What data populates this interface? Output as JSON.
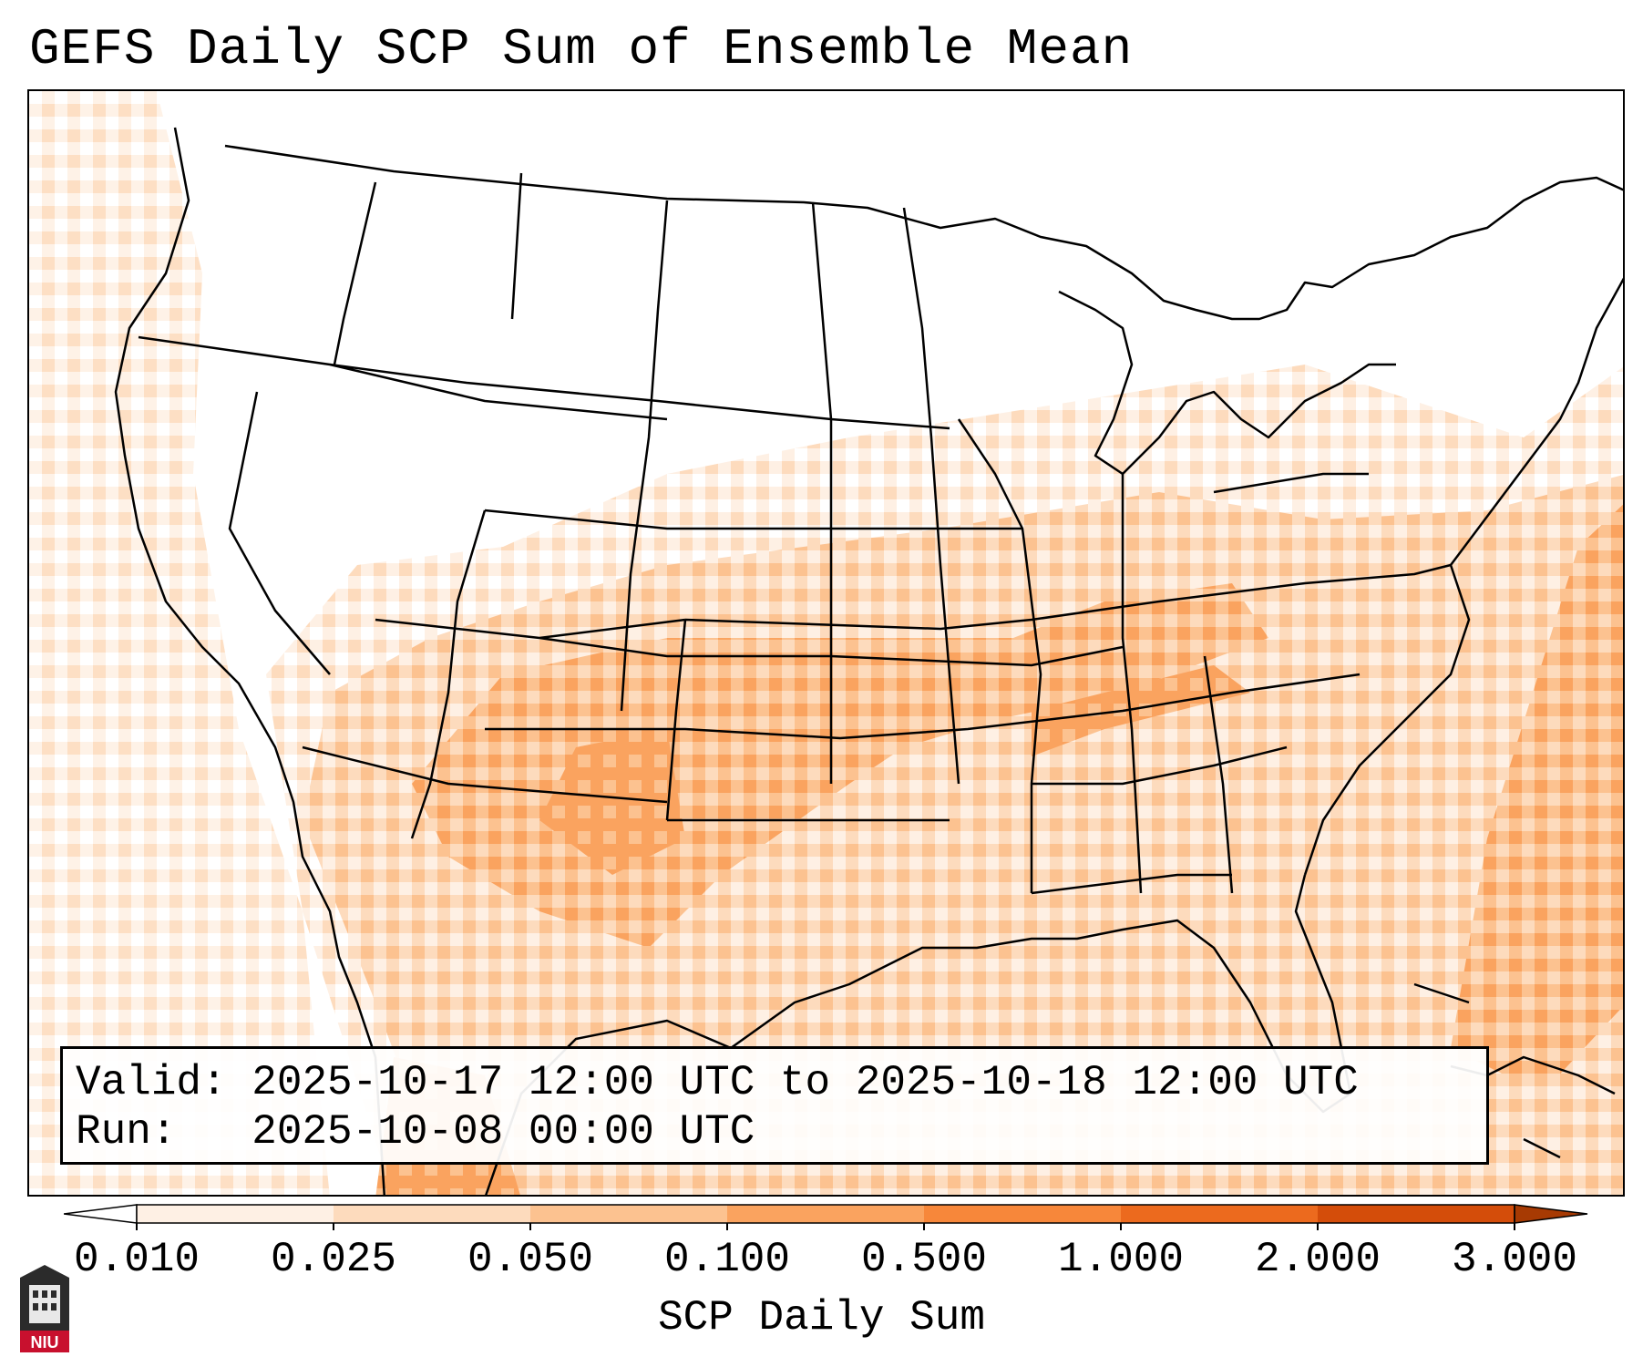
{
  "header": {
    "title": "GEFS Daily SCP Sum of Ensemble Mean"
  },
  "info": {
    "valid_line": "Valid: 2025-10-17 12:00 UTC to 2025-10-18 12:00 UTC",
    "run_line": "Run:   2025-10-08 00:00 UTC"
  },
  "colorbar": {
    "label": "SCP Daily Sum",
    "ticks": [
      "0.010",
      "0.025",
      "0.050",
      "0.100",
      "0.500",
      "1.000",
      "2.000",
      "3.000"
    ],
    "colors": [
      "#fef0e4",
      "#fddbbd",
      "#fcc290",
      "#faa35f",
      "#f7873a",
      "#ec6a1e",
      "#d44d0a"
    ],
    "under_color": "#ffffff",
    "over_color": "#a73a03"
  },
  "logo": {
    "text": "NIU",
    "color": "#c8102e"
  }
}
